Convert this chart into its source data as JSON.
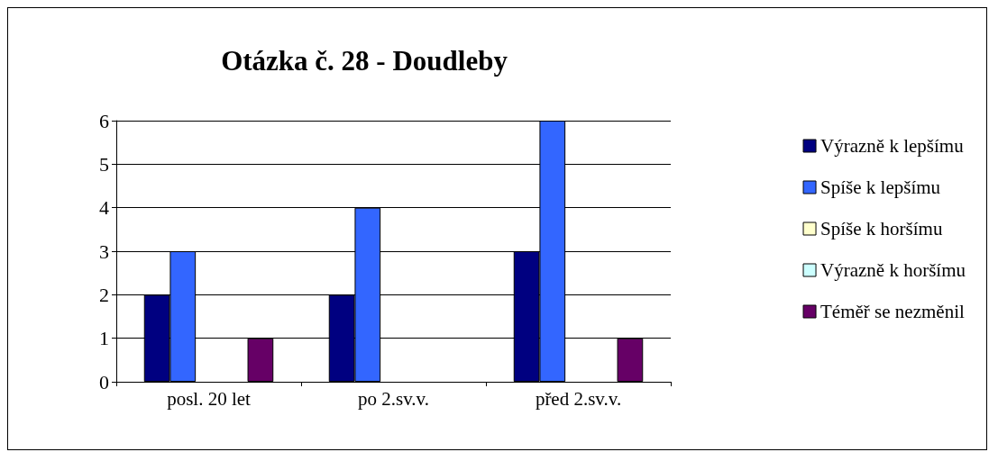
{
  "chart_data": {
    "type": "bar",
    "title": "Otázka č. 28 - Doudleby",
    "categories": [
      "posl. 20 let",
      "po 2.sv.v.",
      "před 2.sv.v."
    ],
    "series": [
      {
        "name": "Výrazně k lepšímu",
        "color": "#000080",
        "values": [
          2,
          2,
          3
        ]
      },
      {
        "name": "Spíše k lepšímu",
        "color": "#3366ff",
        "values": [
          3,
          4,
          6
        ]
      },
      {
        "name": "Spíše k horšímu",
        "color": "#ffffcc",
        "values": [
          0,
          0,
          0
        ]
      },
      {
        "name": "Výrazně k horšímu",
        "color": "#ccffff",
        "values": [
          0,
          0,
          0
        ]
      },
      {
        "name": "Téměř se nezměnil",
        "color": "#660066",
        "values": [
          1,
          0,
          1
        ]
      }
    ],
    "ylim": [
      0,
      6
    ],
    "yticks": [
      0,
      1,
      2,
      3,
      4,
      5,
      6
    ],
    "grid": "y",
    "legend": "right"
  }
}
